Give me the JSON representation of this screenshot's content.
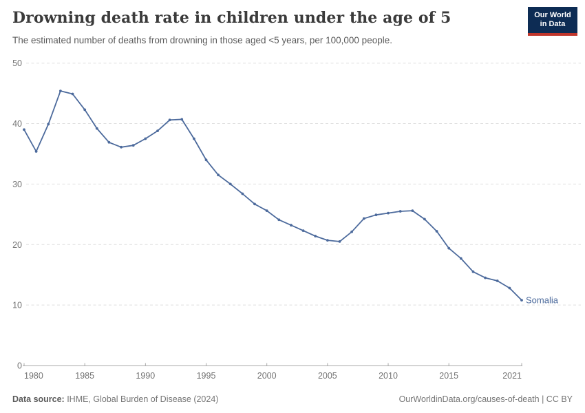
{
  "header": {
    "title": "Drowning death rate in children under the age of 5",
    "subtitle": "The estimated number of deaths from drowning in those aged <5 years, per 100,000 people."
  },
  "logo": {
    "line1": "Our World",
    "line2": "in Data",
    "bg_color": "#0d2c54",
    "bar_color": "#c0362c"
  },
  "chart_data": {
    "type": "line",
    "title": "Drowning death rate in children under the age of 5",
    "xlabel": "",
    "ylabel": "",
    "x": [
      1980,
      1981,
      1982,
      1983,
      1984,
      1985,
      1986,
      1987,
      1988,
      1989,
      1990,
      1991,
      1992,
      1993,
      1994,
      1995,
      1996,
      1997,
      1998,
      1999,
      2000,
      2001,
      2002,
      2003,
      2004,
      2005,
      2006,
      2007,
      2008,
      2009,
      2010,
      2011,
      2012,
      2013,
      2014,
      2015,
      2016,
      2017,
      2018,
      2019,
      2020,
      2021
    ],
    "series": [
      {
        "name": "Somalia",
        "color": "#4c6a9c",
        "values": [
          39.0,
          35.4,
          39.9,
          45.4,
          44.9,
          42.3,
          39.2,
          36.9,
          36.1,
          36.4,
          37.5,
          38.8,
          40.6,
          40.7,
          37.5,
          34.0,
          31.5,
          30.0,
          28.4,
          26.7,
          25.6,
          24.1,
          23.2,
          22.3,
          21.4,
          20.7,
          20.5,
          22.1,
          24.3,
          24.9,
          25.2,
          25.5,
          25.6,
          24.2,
          22.2,
          19.4,
          17.7,
          15.5,
          14.5,
          14.0,
          12.8,
          10.8
        ]
      }
    ],
    "xlim": [
      1980,
      2021
    ],
    "ylim": [
      0,
      50
    ],
    "y_ticks": [
      0,
      10,
      20,
      30,
      40,
      50
    ],
    "x_ticks": [
      1980,
      1985,
      1990,
      1995,
      2000,
      2005,
      2010,
      2015,
      2021
    ],
    "grid": "horizontal-dashed",
    "legend_position": "end-of-line-label"
  },
  "footer": {
    "source_label": "Data source:",
    "source_text": " IHME, Global Burden of Disease (2024)",
    "right_text": "OurWorldinData.org/causes-of-death | CC BY"
  },
  "colors": {
    "line": "#4c6a9c",
    "grid": "#dedede",
    "axis": "#a8a8a8",
    "tick_label": "#737373",
    "title": "#3b3b3b",
    "subtitle": "#5b5b5b"
  }
}
